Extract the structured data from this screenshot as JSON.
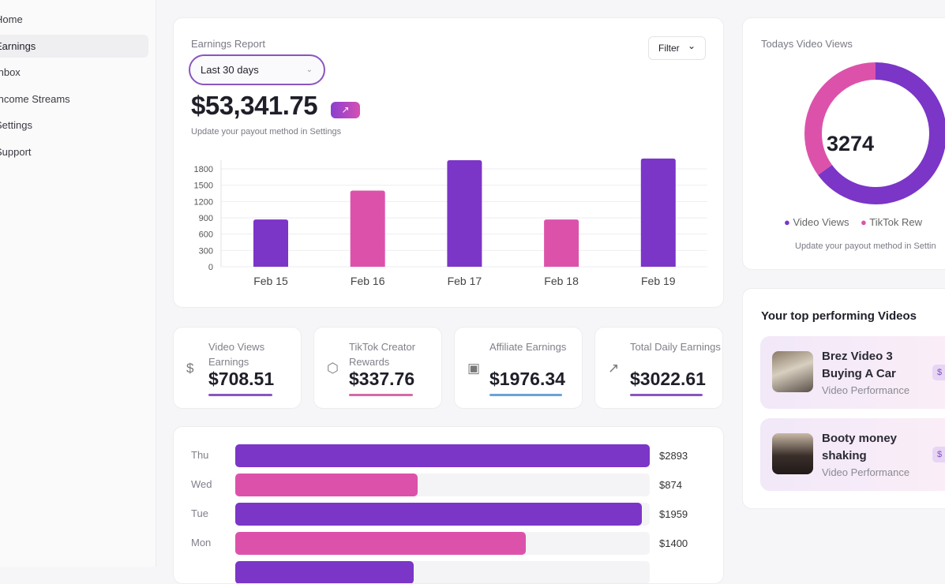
{
  "sidebar": {
    "items": [
      {
        "label": "Home"
      },
      {
        "label": "Earnings",
        "active": true
      },
      {
        "label": "Inbox"
      },
      {
        "label": "Income Streams"
      },
      {
        "label": "Settings"
      },
      {
        "label": "Support"
      }
    ]
  },
  "report": {
    "title": "Earnings Report",
    "range": "Last 30 days",
    "filter": "Filter",
    "total": "$53,341.75",
    "trend_icon": "trending-up-icon",
    "note": "Update your payout method in Settings"
  },
  "chart_data": [
    {
      "type": "bar",
      "categories": [
        "Feb 15",
        "Feb 16",
        "Feb 17",
        "Feb 18",
        "Feb 19"
      ],
      "values": [
        870,
        1400,
        1960,
        870,
        1990
      ],
      "yticks": [
        0,
        300,
        600,
        900,
        1200,
        1500,
        1800
      ],
      "ylim": [
        0,
        2000
      ],
      "grid": true,
      "colors": [
        "#7b35c7",
        "#dc52ab",
        "#7b35c7",
        "#dc52ab",
        "#7b35c7"
      ]
    },
    {
      "type": "pie",
      "title": "Todays Video Views",
      "center_label": "3274",
      "series": [
        {
          "name": "Video Views",
          "value": 65,
          "color": "#7b35c7"
        },
        {
          "name": "TikTok Rewards",
          "value": 35,
          "color": "#dc52ab"
        }
      ]
    },
    {
      "type": "bar",
      "orientation": "horizontal",
      "categories": [
        "Thu",
        "Wed",
        "Tue",
        "Mon"
      ],
      "labels": [
        "$2893",
        "$874",
        "$1959",
        "$1400"
      ],
      "fill_fraction": [
        1.0,
        0.44,
        0.98,
        0.7
      ],
      "colors": [
        "#7b35c7",
        "#dc52ab",
        "#7b35c7",
        "#dc52ab"
      ]
    }
  ],
  "stats": [
    {
      "label": "Video Views Earnings",
      "value": "$708.51",
      "icon": "dollar-icon",
      "color": "#8a55c0"
    },
    {
      "label": "TikTok Creator Rewards",
      "value": "$337.76",
      "icon": "box-icon",
      "color": "#d46aa6"
    },
    {
      "label": "Affiliate Earnings",
      "value": "$1976.34",
      "icon": "banknote-icon",
      "color": "#6aa3d6"
    },
    {
      "label": "Total Daily Earnings",
      "value": "$3022.61",
      "icon": "trending-up-icon",
      "color": "#8a55c0"
    }
  ],
  "views": {
    "title": "Todays Video Views",
    "legend": [
      "Video Views",
      "TikTok Rew"
    ],
    "note": "Update your payout method in Settin"
  },
  "top_videos": {
    "title": "Your top performing Videos",
    "items": [
      {
        "title": "Brez Video 3 Buying A Car",
        "subtitle": "Video Performance",
        "tag": "$"
      },
      {
        "title": "Booty money shaking",
        "subtitle": "Video Performance",
        "tag": "$"
      }
    ]
  }
}
